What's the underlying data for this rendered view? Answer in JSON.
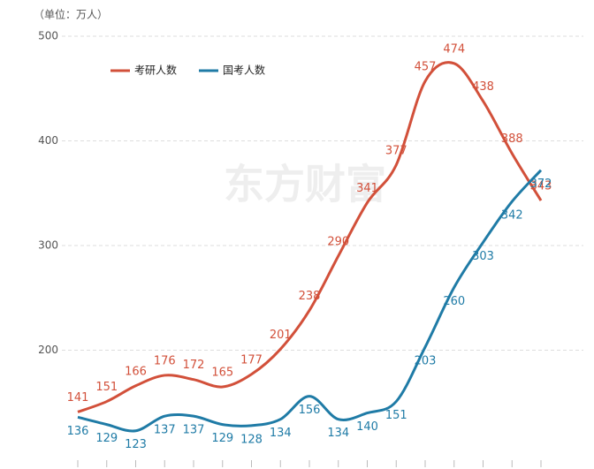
{
  "chart_data": {
    "type": "line",
    "unit_label": "（单位：万人）",
    "watermark": "东方财富",
    "categories": [
      null,
      null,
      null,
      null,
      null,
      null,
      null,
      null,
      null,
      null,
      null,
      null,
      null,
      null,
      null,
      null,
      null
    ],
    "series": [
      {
        "name": "考研人数",
        "color": "#d2503a",
        "values": [
          141,
          151,
          166,
          176,
          172,
          165,
          177,
          201,
          238,
          290,
          341,
          377,
          457,
          474,
          438,
          388,
          343
        ]
      },
      {
        "name": "国考人数",
        "color": "#1f7ba6",
        "values": [
          136,
          129,
          123,
          137,
          137,
          129,
          128,
          134,
          156,
          134,
          140,
          151,
          203,
          260,
          303,
          342,
          372
        ]
      }
    ],
    "ylim": [
      100,
      500
    ],
    "yticks": [
      200,
      300,
      400,
      500
    ],
    "grid": true,
    "legend": "top-left"
  }
}
